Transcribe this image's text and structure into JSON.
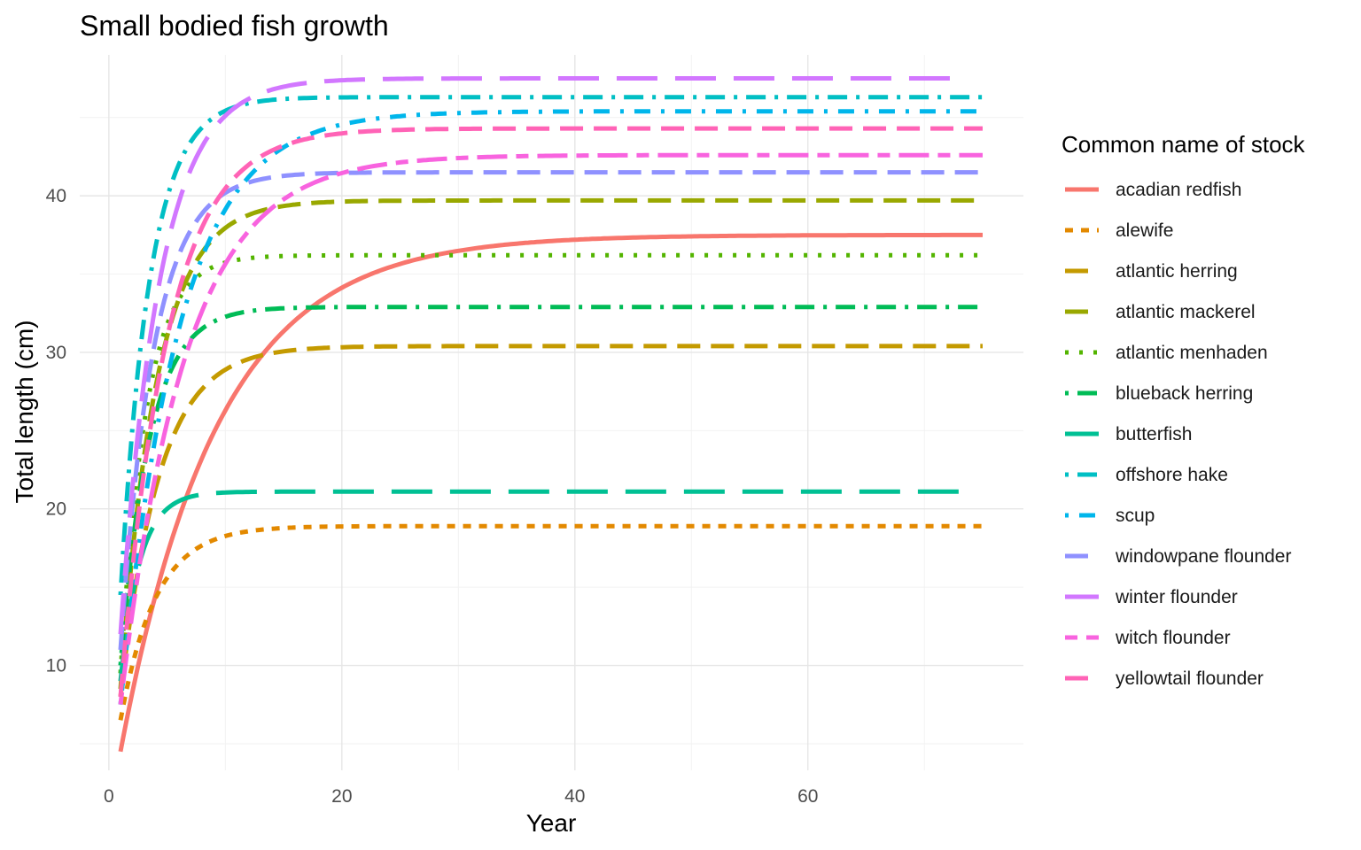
{
  "chart_data": {
    "type": "line",
    "title": "Small bodied fish growth",
    "xlabel": "Year",
    "ylabel": "Total length (cm)",
    "xlim": [
      -2.5,
      78.5
    ],
    "ylim": [
      3.3,
      49.0
    ],
    "x_ticks": [
      0,
      20,
      40,
      60
    ],
    "y_ticks": [
      10,
      20,
      30,
      40
    ],
    "grid": true,
    "legend_title": "Common name of stock",
    "legend_position": "right",
    "series": [
      {
        "name": "acadian redfish",
        "color": "#F8766D",
        "dash": "solid",
        "Linf": 37.5,
        "L1": 4.5,
        "k": 0.12,
        "xmax": 75
      },
      {
        "name": "alewife",
        "color": "#E38900",
        "dash": "short",
        "Linf": 18.9,
        "L1": 6.5,
        "k": 0.33,
        "xmax": 75
      },
      {
        "name": "atlantic herring",
        "color": "#C49A00",
        "dash": "long",
        "Linf": 30.4,
        "L1": 8.0,
        "k": 0.3,
        "xmax": 75
      },
      {
        "name": "atlantic mackerel",
        "color": "#99A800",
        "dash": "long",
        "Linf": 39.7,
        "L1": 8.5,
        "k": 0.32,
        "xmax": 75
      },
      {
        "name": "atlantic menhaden",
        "color": "#53B400",
        "dash": "dot",
        "Linf": 36.2,
        "L1": 9.5,
        "k": 0.45,
        "xmax": 75
      },
      {
        "name": "blueback herring",
        "color": "#00BC56",
        "dash": "dotdash",
        "Linf": 32.9,
        "L1": 10.0,
        "k": 0.4,
        "xmax": 75
      },
      {
        "name": "butterfish",
        "color": "#00C094",
        "dash": "longlong",
        "Linf": 21.1,
        "L1": 9.0,
        "k": 0.6,
        "xmax": 74
      },
      {
        "name": "offshore hake",
        "color": "#00BFC4",
        "dash": "dotdash",
        "Linf": 46.3,
        "L1": 14.5,
        "k": 0.4,
        "xmax": 75
      },
      {
        "name": "scup",
        "color": "#00B6EB",
        "dash": "dotdash2",
        "Linf": 45.4,
        "L1": 7.5,
        "k": 0.2,
        "xmax": 75
      },
      {
        "name": "windowpane flounder",
        "color": "#8F91FF",
        "dash": "long",
        "Linf": 41.5,
        "L1": 11.0,
        "k": 0.35,
        "xmax": 75
      },
      {
        "name": "winter flounder",
        "color": "#D277FF",
        "dash": "longlong",
        "Linf": 47.5,
        "L1": 12.0,
        "k": 0.3,
        "xmax": 73
      },
      {
        "name": "witch flounder",
        "color": "#F863DF",
        "dash": "twodash",
        "Linf": 42.6,
        "L1": 7.5,
        "k": 0.18,
        "xmax": 75
      },
      {
        "name": "yellowtail flounder",
        "color": "#FF63B6",
        "dash": "long",
        "Linf": 44.3,
        "L1": 8.0,
        "k": 0.25,
        "xmax": 75
      }
    ]
  }
}
